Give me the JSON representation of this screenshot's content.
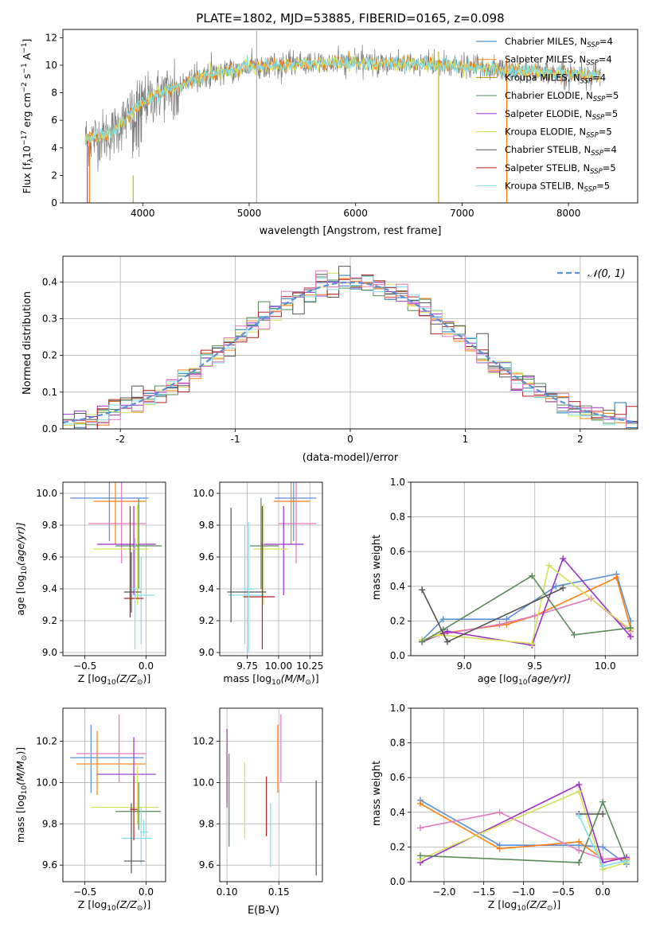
{
  "chart_data": [
    {
      "type": "line",
      "id": "spectrum",
      "title": "PLATE=1802, MJD=53885, FIBERID=0165, z=0.098",
      "xlabel": "wavelength [Angstrom, rest frame]",
      "ylabel_parts": [
        "Flux [f",
        "λ",
        "10",
        "−17",
        " erg cm",
        "−2",
        " s",
        "−1",
        " A",
        "−1",
        "]"
      ],
      "xlim": [
        3250,
        8650
      ],
      "ylim": [
        0,
        12.6
      ],
      "xticks": [
        4000,
        5000,
        6000,
        7000,
        8000
      ],
      "yticks": [
        0,
        2,
        4,
        6,
        8,
        10,
        12
      ],
      "legend_position": "right",
      "legend": [
        {
          "text": "Chabrier MILES, N",
          "sub": "SSP",
          "val": "=4",
          "color": "#1f77b4"
        },
        {
          "text": "Salpeter MILES, N",
          "sub": "SSP",
          "val": "=4",
          "color": "#ff7f0e"
        },
        {
          "text": "Kroupa MILES, N",
          "sub": "SSP",
          "val": "=4",
          "color": "#b8860b"
        },
        {
          "text": "Chabrier ELODIE, N",
          "sub": "SSP",
          "val": "=5",
          "color": "#5a8a5a"
        },
        {
          "text": "Salpeter ELODIE, N",
          "sub": "SSP",
          "val": "=5",
          "color": "#9b30c8"
        },
        {
          "text": "Kroupa ELODIE, N",
          "sub": "SSP",
          "val": "=5",
          "color": "#d4e157"
        },
        {
          "text": "Chabrier STELIB, N",
          "sub": "SSP",
          "val": "=4",
          "color": "#555555"
        },
        {
          "text": "Salpeter STELIB, N",
          "sub": "SSP",
          "val": "=5",
          "color": "#b22222"
        },
        {
          "text": "Kroupa STELIB, N",
          "sub": "SSP",
          "val": "=5",
          "color": "#80deea"
        }
      ],
      "data_range": [
        3460,
        8300
      ],
      "continuum_anchors": [
        [
          3460,
          4.6
        ],
        [
          3700,
          5.0
        ],
        [
          4000,
          7.3
        ],
        [
          4300,
          8.4
        ],
        [
          4600,
          9.3
        ],
        [
          5000,
          9.9
        ],
        [
          5500,
          10.1
        ],
        [
          6000,
          10.2
        ],
        [
          6500,
          10.1
        ],
        [
          7000,
          9.9
        ],
        [
          7500,
          9.6
        ],
        [
          8000,
          9.4
        ],
        [
          8300,
          9.3
        ]
      ],
      "verticals": [
        {
          "x": 3500,
          "y0": 0,
          "y1": 4.4,
          "color": "#ff7f0e"
        },
        {
          "x": 3910,
          "y0": 0,
          "y1": 2.0,
          "color": "#b8b000"
        },
        {
          "x": 5070,
          "y0": 0,
          "y1": 12.5,
          "color": "#aaaaaa"
        },
        {
          "x": 6780,
          "y0": 0,
          "y1": 11.0,
          "color": "#b8b000"
        },
        {
          "x": 7420,
          "y0": 0,
          "y1": 10.5,
          "color": "#ff7f0e"
        },
        {
          "x": 3480,
          "y0": 0,
          "y1": 4.5,
          "color": "#9b30c8"
        }
      ]
    },
    {
      "type": "step",
      "id": "residuals",
      "xlabel": "(data-model)/error",
      "ylabel": "Normed distribution",
      "xlim": [
        -2.5,
        2.5
      ],
      "ylim": [
        0,
        0.47
      ],
      "xticks": [
        -2,
        -1,
        0,
        1,
        2
      ],
      "yticks": [
        0.0,
        0.1,
        0.2,
        0.3,
        0.4
      ],
      "legend": [
        {
          "label": "𝒩(0, 1)",
          "color": "#5b8fd6"
        }
      ],
      "bin_width": 0.1,
      "series_colors": [
        "#1f77b4",
        "#ff7f0e",
        "#5a8a5a",
        "#9b30c8",
        "#d4e157",
        "#555555",
        "#b22222",
        "#80deea",
        "#e377c2"
      ]
    },
    {
      "type": "errorbar",
      "id": "age_vs_Z",
      "xlabel_parts": [
        "Z [log",
        "10",
        "(Z/Z",
        "⊙",
        ")]"
      ],
      "ylabel_parts": [
        "age  [log",
        "10",
        "(age/yr)]"
      ],
      "xlim": [
        -0.68,
        0.16
      ],
      "ylim": [
        8.98,
        10.07
      ],
      "xticks": [
        -0.5,
        0.0
      ],
      "xticklabels": [
        "−0.5",
        "0.0"
      ],
      "yticks": [
        9.0,
        9.2,
        9.4,
        9.6,
        9.8,
        10.0
      ],
      "points": [
        {
          "x": -0.3,
          "xl": -0.62,
          "xh": 0.02,
          "y": 9.97,
          "yl": 9.7,
          "yh": 10.08,
          "c": "#5b8fd6"
        },
        {
          "x": -0.25,
          "xl": -0.43,
          "xh": 0.0,
          "y": 9.95,
          "yl": 9.68,
          "yh": 10.07,
          "c": "#ff7f0e"
        },
        {
          "x": -0.2,
          "xl": -0.47,
          "xh": 0.0,
          "y": 9.81,
          "yl": 9.56,
          "yh": 10.08,
          "c": "#e377c2"
        },
        {
          "x": -0.1,
          "xl": -0.4,
          "xh": 0.08,
          "y": 9.68,
          "yl": 9.36,
          "yh": 9.92,
          "c": "#9b30c8"
        },
        {
          "x": -0.07,
          "xl": -0.43,
          "xh": 0.02,
          "y": 9.65,
          "yl": 9.3,
          "yh": 9.93,
          "c": "#d4e157"
        },
        {
          "x": -0.06,
          "xl": -0.25,
          "xh": 0.13,
          "y": 9.67,
          "yl": 9.4,
          "yh": 9.97,
          "c": "#5a8a5a"
        },
        {
          "x": -0.04,
          "xl": -0.1,
          "xh": 0.07,
          "y": 9.36,
          "yl": 9.05,
          "yh": 9.6,
          "c": "#80deea"
        },
        {
          "x": -0.12,
          "xl": -0.18,
          "xh": -0.04,
          "y": 9.38,
          "yl": 9.25,
          "yh": 9.63,
          "c": "#555555"
        },
        {
          "x": -0.13,
          "xl": -0.18,
          "xh": -0.02,
          "y": 9.34,
          "yl": 9.22,
          "yh": 9.92,
          "c": "#b22222"
        },
        {
          "x": -0.09,
          "xl": -0.12,
          "xh": -0.06,
          "y": 9.4,
          "yl": 9.02,
          "yh": 9.72,
          "c": "#80deea"
        }
      ]
    },
    {
      "type": "errorbar",
      "id": "age_vs_mass",
      "xlabel_parts": [
        "mass [log",
        "10",
        "(M/M",
        "⊙",
        ")]"
      ],
      "xlim": [
        9.53,
        10.35
      ],
      "ylim": [
        8.98,
        10.07
      ],
      "xticks": [
        9.75,
        10.0,
        10.25
      ],
      "xticklabels": [
        "9.75",
        "10.00",
        "10.25"
      ],
      "yticks": [
        9.0,
        9.2,
        9.4,
        9.6,
        9.8,
        10.0
      ],
      "points": [
        {
          "x": 10.12,
          "xl": 9.97,
          "xh": 10.3,
          "y": 9.97,
          "yl": 9.7,
          "yh": 10.08,
          "c": "#5b8fd6"
        },
        {
          "x": 10.1,
          "xl": 9.96,
          "xh": 10.25,
          "y": 9.95,
          "yl": 9.68,
          "yh": 10.07,
          "c": "#ff7f0e"
        },
        {
          "x": 10.14,
          "xl": 10.0,
          "xh": 10.3,
          "y": 9.81,
          "yl": 9.56,
          "yh": 10.08,
          "c": "#e377c2"
        },
        {
          "x": 10.04,
          "xl": 9.86,
          "xh": 10.2,
          "y": 9.68,
          "yl": 9.36,
          "yh": 9.92,
          "c": "#9b30c8"
        },
        {
          "x": 9.88,
          "xl": 9.8,
          "xh": 10.08,
          "y": 9.65,
          "yl": 9.3,
          "yh": 9.93,
          "c": "#d4e157"
        },
        {
          "x": 9.86,
          "xl": 9.77,
          "xh": 10.0,
          "y": 9.67,
          "yl": 9.4,
          "yh": 9.97,
          "c": "#5a8a5a"
        },
        {
          "x": 9.73,
          "xl": 9.6,
          "xh": 9.88,
          "y": 9.36,
          "yl": 9.05,
          "yh": 9.8,
          "c": "#80deea"
        },
        {
          "x": 9.62,
          "xl": 9.59,
          "xh": 9.9,
          "y": 9.38,
          "yl": 9.19,
          "yh": 9.91,
          "c": "#555555"
        },
        {
          "x": 9.87,
          "xl": 9.72,
          "xh": 9.97,
          "y": 9.35,
          "yl": 9.02,
          "yh": 9.92,
          "c": "#b22222"
        },
        {
          "x": 9.76,
          "xl": 9.72,
          "xh": 9.82,
          "y": 9.4,
          "yl": 9.0,
          "yh": 9.82,
          "c": "#80deea"
        }
      ]
    },
    {
      "type": "line",
      "id": "massweight_vs_age",
      "xlabel_parts": [
        "age  [log",
        "10",
        "(age/yr)]"
      ],
      "ylabel": "mass weight",
      "xlim": [
        8.62,
        10.23
      ],
      "ylim": [
        0.0,
        1.0
      ],
      "xticks": [
        9.0,
        9.5,
        10.0
      ],
      "xticklabels": [
        "9.0",
        "9.5",
        "10.0"
      ],
      "yticks": [
        0.0,
        0.2,
        0.4,
        0.6,
        0.8,
        1.0
      ],
      "yticklabels": [
        "0.0",
        "0.2",
        "0.4",
        "0.6",
        "0.8",
        "1.0"
      ],
      "series": [
        {
          "c": "#5b8fd6",
          "x": [
            8.7,
            8.85,
            9.3,
            9.65,
            10.08,
            10.18
          ],
          "y": [
            0.09,
            0.21,
            0.21,
            0.4,
            0.47,
            0.2
          ]
        },
        {
          "c": "#ff7f0e",
          "x": [
            8.7,
            8.85,
            9.3,
            9.5,
            10.08,
            10.18
          ],
          "y": [
            0.08,
            0.13,
            0.18,
            0.23,
            0.45,
            0.16
          ]
        },
        {
          "c": "#e377c2",
          "x": [
            8.7,
            8.82,
            9.25,
            9.5,
            9.9,
            10.18
          ],
          "y": [
            0.09,
            0.12,
            0.18,
            0.23,
            0.33,
            0.14
          ]
        },
        {
          "c": "#9b30c8",
          "x": [
            8.7,
            8.88,
            9.48,
            9.7,
            10.18
          ],
          "y": [
            0.08,
            0.14,
            0.06,
            0.56,
            0.11
          ]
        },
        {
          "c": "#d4e157",
          "x": [
            8.7,
            8.82,
            9.48,
            9.6,
            10.18
          ],
          "y": [
            0.09,
            0.12,
            0.07,
            0.52,
            0.15
          ]
        },
        {
          "c": "#5a8a5a",
          "x": [
            8.7,
            8.85,
            9.48,
            9.78,
            10.18
          ],
          "y": [
            0.08,
            0.15,
            0.46,
            0.12,
            0.16
          ]
        },
        {
          "c": "#555555",
          "x": [
            8.7,
            8.88,
            9.7
          ],
          "y": [
            0.38,
            0.08,
            0.39
          ]
        }
      ]
    },
    {
      "type": "errorbar",
      "id": "mass_vs_Z",
      "xlabel_parts": [
        "Z [log",
        "10",
        "(Z/Z",
        "⊙",
        ")]"
      ],
      "ylabel_parts": [
        "mass [log",
        "10",
        "(M/M",
        "⊙",
        ")]"
      ],
      "xlim": [
        -0.68,
        0.16
      ],
      "ylim": [
        9.52,
        10.36
      ],
      "xticks": [
        -0.5,
        0.0
      ],
      "xticklabels": [
        "−0.5",
        "0.0"
      ],
      "yticks": [
        9.6,
        9.8,
        10.0,
        10.2
      ],
      "points": [
        {
          "x": -0.45,
          "xl": -0.62,
          "xh": -0.02,
          "y": 10.12,
          "yl": 9.95,
          "yh": 10.28,
          "c": "#5b8fd6"
        },
        {
          "x": -0.4,
          "xl": -0.57,
          "xh": 0.0,
          "y": 10.09,
          "yl": 9.94,
          "yh": 10.25,
          "c": "#ff7f0e"
        },
        {
          "x": -0.22,
          "xl": -0.57,
          "xh": 0.0,
          "y": 10.14,
          "yl": 10.0,
          "yh": 10.33,
          "c": "#e377c2"
        },
        {
          "x": -0.1,
          "xl": -0.4,
          "xh": 0.08,
          "y": 10.04,
          "yl": 9.86,
          "yh": 10.22,
          "c": "#9b30c8"
        },
        {
          "x": -0.07,
          "xl": -0.45,
          "xh": 0.1,
          "y": 9.88,
          "yl": 9.8,
          "yh": 10.08,
          "c": "#d4e157"
        },
        {
          "x": -0.06,
          "xl": -0.25,
          "xh": 0.12,
          "y": 9.86,
          "yl": 9.77,
          "yh": 10.0,
          "c": "#5a8a5a"
        },
        {
          "x": -0.04,
          "xl": -0.2,
          "xh": 0.05,
          "y": 9.73,
          "yl": 9.6,
          "yh": 9.88,
          "c": "#80deea"
        },
        {
          "x": -0.12,
          "xl": -0.18,
          "xh": -0.01,
          "y": 9.62,
          "yl": 9.56,
          "yh": 9.9,
          "c": "#555555"
        },
        {
          "x": -0.1,
          "xl": -0.13,
          "xh": -0.07,
          "y": 9.87,
          "yl": 9.72,
          "yh": 10.03,
          "c": "#b22222"
        },
        {
          "x": -0.02,
          "xl": -0.05,
          "xh": 0.02,
          "y": 9.76,
          "yl": 9.74,
          "yh": 9.82,
          "c": "#80deea"
        }
      ]
    },
    {
      "type": "errorbar",
      "id": "mass_vs_ebv",
      "xlabel": "E(B-V)",
      "xlim": [
        0.093,
        0.192
      ],
      "ylim": [
        9.52,
        10.36
      ],
      "xticks": [
        0.1,
        0.15
      ],
      "xticklabels": [
        "0.10",
        "0.15"
      ],
      "yticks": [
        9.6,
        9.8,
        10.0,
        10.2
      ],
      "points": [
        {
          "x": 0.1,
          "y": 10.05,
          "yl": 9.88,
          "yh": 10.26,
          "c": "#9b30c8"
        },
        {
          "x": 0.102,
          "y": 9.9,
          "yl": 9.69,
          "yh": 10.14,
          "c": "#5a8a5a"
        },
        {
          "x": 0.117,
          "y": 9.9,
          "yl": 9.73,
          "yh": 10.1,
          "c": "#d4e157"
        },
        {
          "x": 0.138,
          "y": 9.86,
          "yl": 9.74,
          "yh": 10.03,
          "c": "#b22222"
        },
        {
          "x": 0.142,
          "y": 9.76,
          "yl": 9.59,
          "yh": 9.9,
          "c": "#80deea"
        },
        {
          "x": 0.149,
          "y": 10.1,
          "yl": 9.95,
          "yh": 10.28,
          "c": "#ff7f0e"
        },
        {
          "x": 0.152,
          "y": 10.14,
          "yl": 10.0,
          "yh": 10.33,
          "c": "#e377c2"
        },
        {
          "x": 0.186,
          "y": 9.78,
          "yl": 9.55,
          "yh": 10.01,
          "c": "#555555"
        }
      ]
    },
    {
      "type": "line",
      "id": "massweight_vs_Z",
      "xlabel_parts": [
        "Z [log",
        "10",
        "(Z/Z",
        "⊙",
        ")]"
      ],
      "ylabel": "mass weight",
      "xlim": [
        -2.42,
        0.44
      ],
      "ylim": [
        0.0,
        1.0
      ],
      "xticks": [
        -2.0,
        -1.5,
        -1.0,
        -0.5,
        0.0
      ],
      "xticklabels": [
        "−2.0",
        "−1.5",
        "−1.0",
        "−0.5",
        "0.0"
      ],
      "yticks": [
        0.0,
        0.2,
        0.4,
        0.6,
        0.8,
        1.0
      ],
      "yticklabels": [
        "0.0",
        "0.2",
        "0.4",
        "0.6",
        "0.8",
        "1.0"
      ],
      "series": [
        {
          "c": "#5b8fd6",
          "x": [
            -2.3,
            -1.3,
            -0.3,
            0.0,
            0.3
          ],
          "y": [
            0.47,
            0.21,
            0.21,
            0.2,
            0.1
          ]
        },
        {
          "c": "#ff7f0e",
          "x": [
            -2.3,
            -1.3,
            -0.3,
            0.0,
            0.3
          ],
          "y": [
            0.45,
            0.19,
            0.23,
            0.13,
            0.13
          ]
        },
        {
          "c": "#e377c2",
          "x": [
            -2.3,
            -1.3,
            -0.3,
            0.0,
            0.3
          ],
          "y": [
            0.31,
            0.4,
            0.18,
            0.13,
            0.14
          ]
        },
        {
          "c": "#9b30c8",
          "x": [
            -2.3,
            -0.3,
            0.0,
            0.3
          ],
          "y": [
            0.11,
            0.56,
            0.11,
            0.14
          ]
        },
        {
          "c": "#d4e157",
          "x": [
            -2.3,
            -0.3,
            0.0,
            0.3
          ],
          "y": [
            0.13,
            0.52,
            0.07,
            0.11
          ]
        },
        {
          "c": "#5a8a5a",
          "x": [
            -2.3,
            -0.3,
            0.0,
            0.3
          ],
          "y": [
            0.15,
            0.11,
            0.46,
            0.12
          ]
        },
        {
          "c": "#555555",
          "x": [
            -0.3,
            0.0
          ],
          "y": [
            0.39,
            0.39
          ]
        },
        {
          "c": "#80deea",
          "x": [
            -0.3,
            0.0,
            0.3
          ],
          "y": [
            0.38,
            0.09,
            0.12
          ]
        }
      ]
    }
  ]
}
